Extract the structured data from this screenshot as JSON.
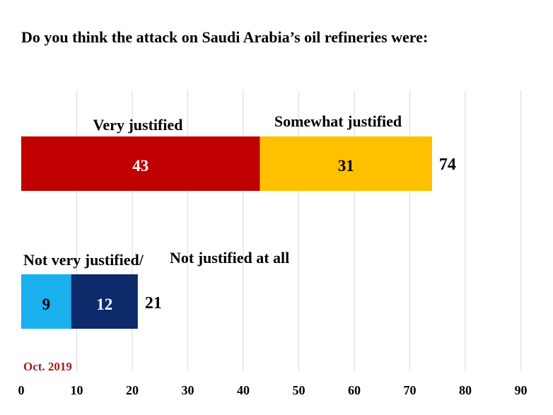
{
  "title": "Do you think the attack on Saudi Arabia’s oil refineries were:",
  "footnote": "Oct. 2019",
  "chart_data": {
    "type": "bar",
    "orientation": "horizontal",
    "stacked": true,
    "title": "Do you think the attack on Saudi Arabia’s oil refineries were:",
    "xlim": [
      0,
      90
    ],
    "xticks": [
      0,
      10,
      20,
      30,
      40,
      50,
      60,
      70,
      80,
      90
    ],
    "grid": true,
    "groups": [
      {
        "total": 74,
        "segments": [
          {
            "name": "Very justified",
            "value": 43,
            "color": "#c00000"
          },
          {
            "name": "Somewhat justified",
            "value": 31,
            "color": "#ffc000"
          }
        ],
        "combined_label": ""
      },
      {
        "total": 21,
        "segments": [
          {
            "name": "Not very justified/",
            "value": 9,
            "color": "#1ab0ee"
          },
          {
            "name": "Not justified at all",
            "value": 12,
            "color": "#0d2a6b"
          }
        ],
        "combined_label": "Not very justified/ Not justified at all"
      }
    ]
  }
}
